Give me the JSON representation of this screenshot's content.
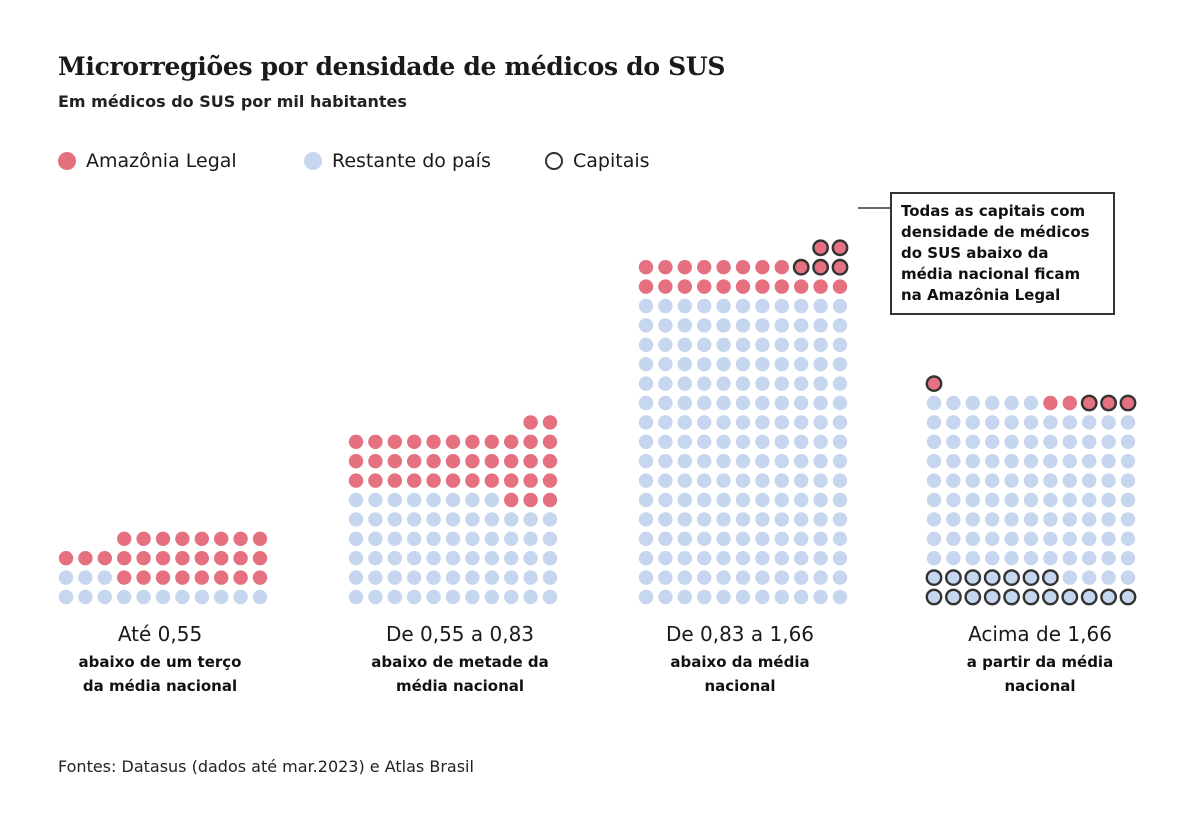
{
  "header": {
    "title": "Microrregiões por densidade de médicos do SUS",
    "subtitle": "Em médicos do SUS por mil habitantes"
  },
  "legend": [
    {
      "label": "Amazônia Legal",
      "color": "#e5707f",
      "kind": "filled"
    },
    {
      "label": "Restante do país",
      "color": "#c5d6ee",
      "kind": "filled"
    },
    {
      "label": "Capitais",
      "color": "#333333",
      "kind": "outline"
    }
  ],
  "annotation": {
    "text": "Todas as capitais com densidade de médicos do SUS abaixo da média nacional ficam na Amazônia Legal"
  },
  "source": "Fontes: Datasus (dados até mar.2023) e Atlas Brasil",
  "chart_data": {
    "type": "waffle",
    "units": "microrregiões",
    "grid_columns": 11,
    "colors": {
      "amazonia": "#e5707f",
      "restante": "#c5d6ee",
      "capital_outline": "#333333"
    },
    "categories": [
      {
        "range": "Até 0,55",
        "description": "abaixo de um terço da média nacional",
        "amazonia_capitais": 0,
        "amazonia_outras": 27,
        "restante_capitais": 0,
        "restante_outras": 14
      },
      {
        "range": "De 0,55 a 0,83",
        "description": "abaixo de metade da média nacional",
        "amazonia_capitais": 0,
        "amazonia_outras": 38,
        "restante_capitais": 0,
        "restante_outras": 63
      },
      {
        "range": "De 0,83 a 1,66",
        "description": "abaixo da média nacional",
        "amazonia_capitais": 5,
        "amazonia_outras": 19,
        "restante_capitais": 0,
        "restante_outras": 176
      },
      {
        "range": "Acima de 1,66",
        "description": "a partir da média nacional",
        "amazonia_capitais": 4,
        "amazonia_outras": 2,
        "restante_capitais": 18,
        "restante_outras": 98
      }
    ]
  }
}
